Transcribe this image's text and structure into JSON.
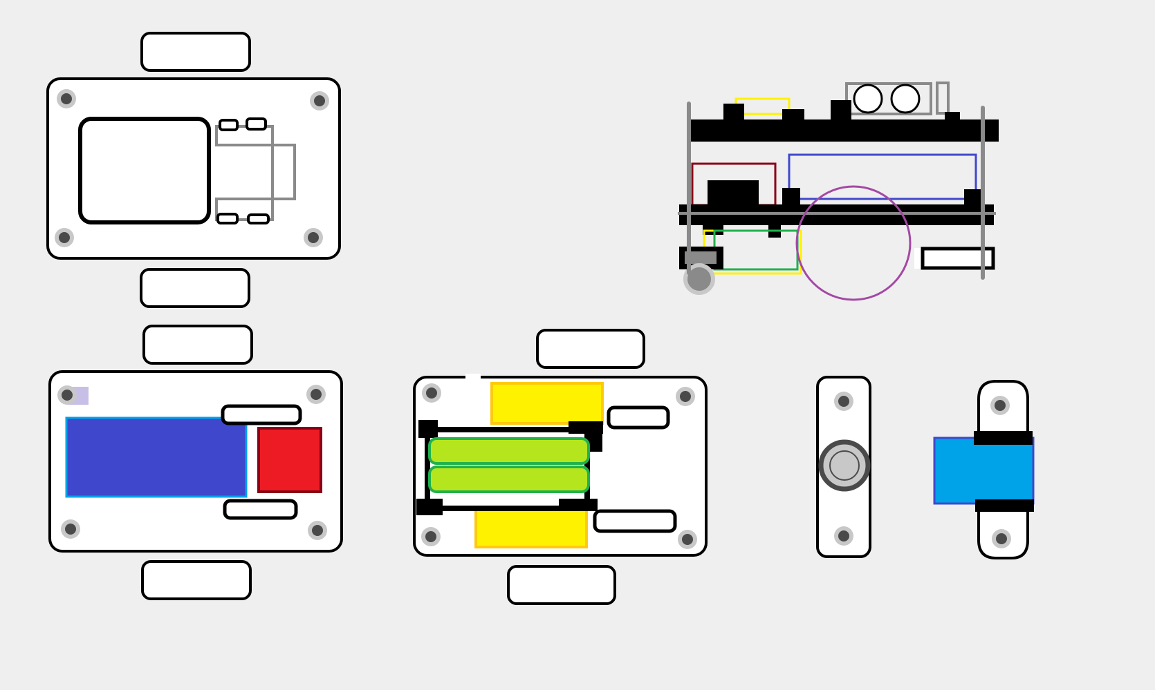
{
  "canvas": {
    "background": "#efefef"
  },
  "colors": {
    "outline": "#000000",
    "board": "#ffffff",
    "screw_ring": "#c8c8c8",
    "screw_center": "#4a4a4a",
    "gray_line": "#8a8a8a",
    "blue_module": "#3f48cc",
    "blue_module_edge": "#00a2e8",
    "red_module": "#ed1c24",
    "red_module_edge": "#880015",
    "yellow": "#fff200",
    "yellow_edge": "#ffc90e",
    "battery_green": "#b5e61d",
    "battery_edge": "#22b14c",
    "servo_blue": "#00a2e8",
    "servo_blue_edge": "#3f48cc",
    "purple": "#a349a4",
    "side_blue": "#3f48cc",
    "side_red": "#880015",
    "side_green": "#22b14c",
    "lavender": "#c8bfe7"
  },
  "views": [
    {
      "id": "chassis-top-view",
      "icon": "board-outline-icon"
    },
    {
      "id": "side-view-assembly",
      "icon": "robot-side-icon"
    },
    {
      "id": "chassis-bottom-view",
      "icon": "board-outline-icon"
    },
    {
      "id": "battery-layer-view",
      "icon": "battery-icon"
    },
    {
      "id": "servo-horn-front-view",
      "icon": "servo-horn-icon"
    },
    {
      "id": "servo-side-view",
      "icon": "servo-icon"
    }
  ]
}
